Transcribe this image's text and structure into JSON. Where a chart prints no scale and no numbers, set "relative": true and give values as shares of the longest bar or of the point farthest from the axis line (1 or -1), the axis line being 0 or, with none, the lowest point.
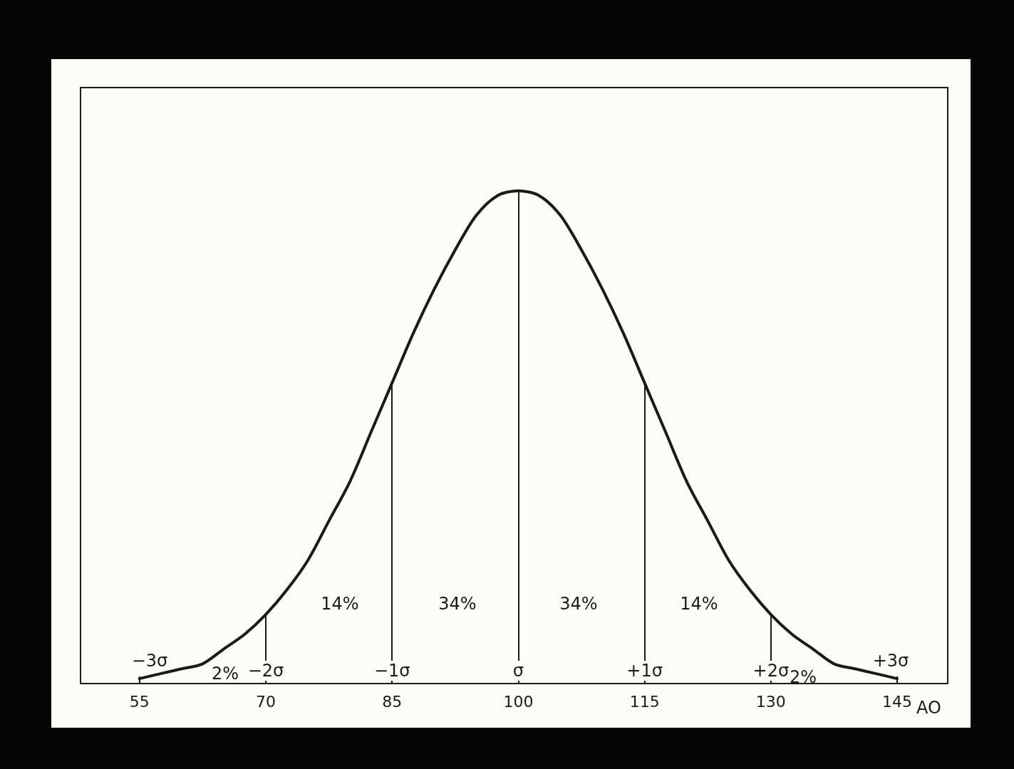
{
  "chart_data": {
    "type": "line",
    "relative": true,
    "xlabel": "AO",
    "x": [
      55,
      57.5,
      60,
      62.5,
      65,
      67.5,
      70,
      72.5,
      75,
      77.5,
      80,
      82.5,
      85,
      87.5,
      90,
      92.5,
      95,
      97.5,
      100,
      102.5,
      105,
      107.5,
      110,
      112.5,
      115,
      117.5,
      120,
      122.5,
      125,
      127.5,
      130,
      132.5,
      135,
      137.5,
      140,
      142.5,
      145
    ],
    "series": [
      {
        "color": "#1a1a1a",
        "values": [
          0.01,
          0.02,
          0.03,
          0.04,
          0.07,
          0.1,
          0.14,
          0.19,
          0.25,
          0.33,
          0.41,
          0.51,
          0.61,
          0.71,
          0.8,
          0.88,
          0.95,
          0.99,
          1,
          0.99,
          0.95,
          0.88,
          0.8,
          0.71,
          0.61,
          0.51,
          0.41,
          0.33,
          0.25,
          0.19,
          0.14,
          0.1,
          0.07,
          0.04,
          0.03,
          0.02,
          0.01
        ]
      }
    ],
    "xlim": [
      48,
      151
    ],
    "xticks": [
      55,
      70,
      85,
      100,
      115,
      130,
      145
    ],
    "ref_lines": [
      {
        "axis": "x",
        "value": 70,
        "label": "−2σ",
        "color": "#1a1a1a"
      },
      {
        "axis": "x",
        "value": 85,
        "label": "−1σ",
        "color": "#1a1a1a"
      },
      {
        "axis": "x",
        "value": 100,
        "label": "σ",
        "color": "#1a1a1a"
      },
      {
        "axis": "x",
        "value": 115,
        "label": "+1σ",
        "color": "#1a1a1a"
      },
      {
        "axis": "x",
        "value": 130,
        "label": "+2σ",
        "color": "#1a1a1a"
      }
    ],
    "annotations": [
      "−3σ",
      "+3σ",
      "2%",
      "2%",
      "14%",
      "34%",
      "34%",
      "14%"
    ]
  }
}
